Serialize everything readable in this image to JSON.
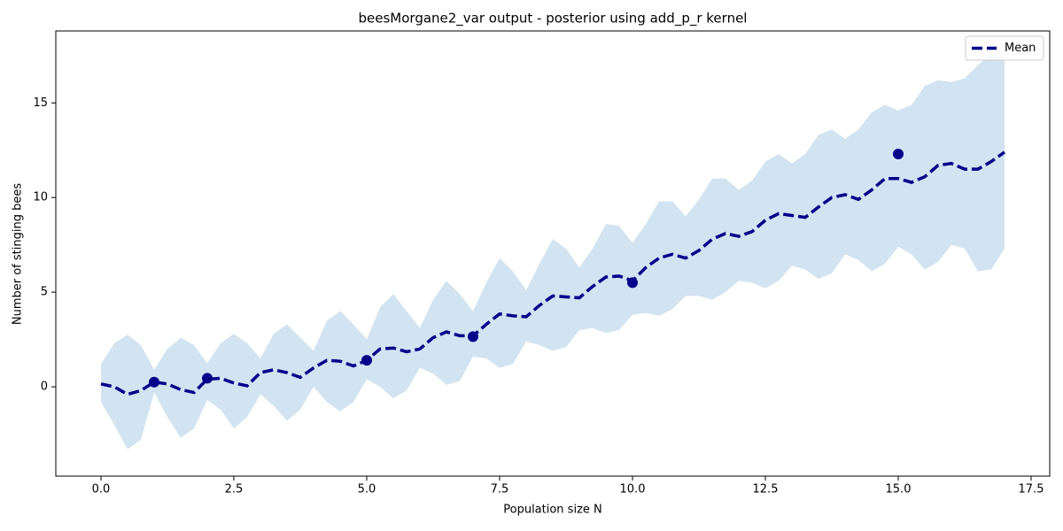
{
  "chart_data": {
    "type": "line",
    "title": "beesMorgane2_var output - posterior using add_p_r kernel",
    "xlabel": "Population size N",
    "ylabel": "Number of stinging bees",
    "x": [
      0,
      0.25,
      0.5,
      0.75,
      1,
      1.25,
      1.5,
      1.75,
      2,
      2.25,
      2.5,
      2.75,
      3,
      3.25,
      3.5,
      3.75,
      4,
      4.25,
      4.5,
      4.75,
      5,
      5.25,
      5.5,
      5.75,
      6,
      6.25,
      6.5,
      6.75,
      7,
      7.25,
      7.5,
      7.75,
      8,
      8.25,
      8.5,
      8.75,
      9,
      9.25,
      9.5,
      9.75,
      10,
      10.25,
      10.5,
      10.75,
      11,
      11.25,
      11.5,
      11.75,
      12,
      12.25,
      12.5,
      12.75,
      13,
      13.25,
      13.5,
      13.75,
      14,
      14.25,
      14.5,
      14.75,
      15,
      15.25,
      15.5,
      15.75,
      16,
      16.25,
      16.5,
      16.75,
      17
    ],
    "series": [
      {
        "name": "Mean",
        "color": "#00008b",
        "values": [
          0.15,
          0.0,
          -0.4,
          -0.2,
          0.25,
          0.15,
          -0.15,
          -0.3,
          0.4,
          0.45,
          0.2,
          0.05,
          0.75,
          0.9,
          0.75,
          0.5,
          1.0,
          1.4,
          1.35,
          1.1,
          1.4,
          2.0,
          2.05,
          1.85,
          2.0,
          2.6,
          2.9,
          2.7,
          2.7,
          3.3,
          3.85,
          3.75,
          3.7,
          4.3,
          4.8,
          4.75,
          4.7,
          5.3,
          5.8,
          5.85,
          5.6,
          6.3,
          6.8,
          7.0,
          6.8,
          7.2,
          7.8,
          8.1,
          7.95,
          8.2,
          8.8,
          9.15,
          9.05,
          8.95,
          9.5,
          10.0,
          10.15,
          9.9,
          10.4,
          11.0,
          11.0,
          10.8,
          11.1,
          11.7,
          11.8,
          11.5,
          11.5,
          11.9,
          12.4
        ]
      }
    ],
    "band": {
      "color": "#d2e3f1",
      "lower": [
        -0.8,
        -2.0,
        -3.3,
        -2.8,
        -0.3,
        -1.6,
        -2.7,
        -2.2,
        -0.7,
        -1.2,
        -2.2,
        -1.6,
        -0.4,
        -1.0,
        -1.8,
        -1.2,
        0.0,
        -0.8,
        -1.3,
        -0.8,
        0.4,
        0.0,
        -0.6,
        -0.2,
        1.0,
        0.7,
        0.1,
        0.3,
        1.6,
        1.5,
        1.0,
        1.2,
        2.4,
        2.2,
        1.9,
        2.1,
        3.0,
        3.1,
        2.85,
        3.0,
        3.8,
        3.9,
        3.75,
        4.1,
        4.8,
        4.8,
        4.6,
        5.0,
        5.6,
        5.5,
        5.2,
        5.6,
        6.4,
        6.2,
        5.7,
        6.0,
        7.0,
        6.7,
        6.1,
        6.5,
        7.4,
        7.0,
        6.2,
        6.6,
        7.5,
        7.3,
        6.1,
        6.2,
        7.3
      ],
      "upper": [
        1.2,
        2.3,
        2.75,
        2.2,
        0.9,
        2.0,
        2.6,
        2.2,
        1.25,
        2.3,
        2.8,
        2.3,
        1.5,
        2.8,
        3.3,
        2.6,
        1.9,
        3.5,
        4.0,
        3.3,
        2.5,
        4.2,
        4.9,
        4.0,
        3.1,
        4.6,
        5.6,
        4.9,
        4.0,
        5.5,
        6.8,
        6.1,
        5.1,
        6.5,
        7.8,
        7.3,
        6.3,
        7.3,
        8.6,
        8.5,
        7.6,
        8.6,
        9.8,
        9.8,
        9.0,
        9.9,
        11.0,
        11.0,
        10.4,
        10.9,
        11.9,
        12.3,
        11.8,
        12.3,
        13.3,
        13.6,
        13.1,
        13.6,
        14.5,
        14.9,
        14.6,
        14.9,
        15.9,
        16.2,
        16.1,
        16.3,
        17.0,
        17.6,
        17.6
      ]
    },
    "points": {
      "color": "#00008b",
      "x": [
        1,
        2,
        5,
        7,
        10,
        15
      ],
      "values": [
        0.25,
        0.45,
        1.4,
        2.65,
        5.5,
        12.3
      ]
    },
    "xlim": [
      -0.85,
      17.85
    ],
    "ylim": [
      -4.72,
      18.8
    ],
    "xticks": [
      {
        "value": 0,
        "label": "0.0"
      },
      2.5,
      {
        "value": 5,
        "label": "5.0"
      },
      7.5,
      {
        "value": 10,
        "label": "10.0"
      },
      12.5,
      {
        "value": 15,
        "label": "15.0"
      },
      17.5
    ],
    "yticks": [
      0,
      5,
      10,
      15
    ],
    "legend": "upper right"
  }
}
